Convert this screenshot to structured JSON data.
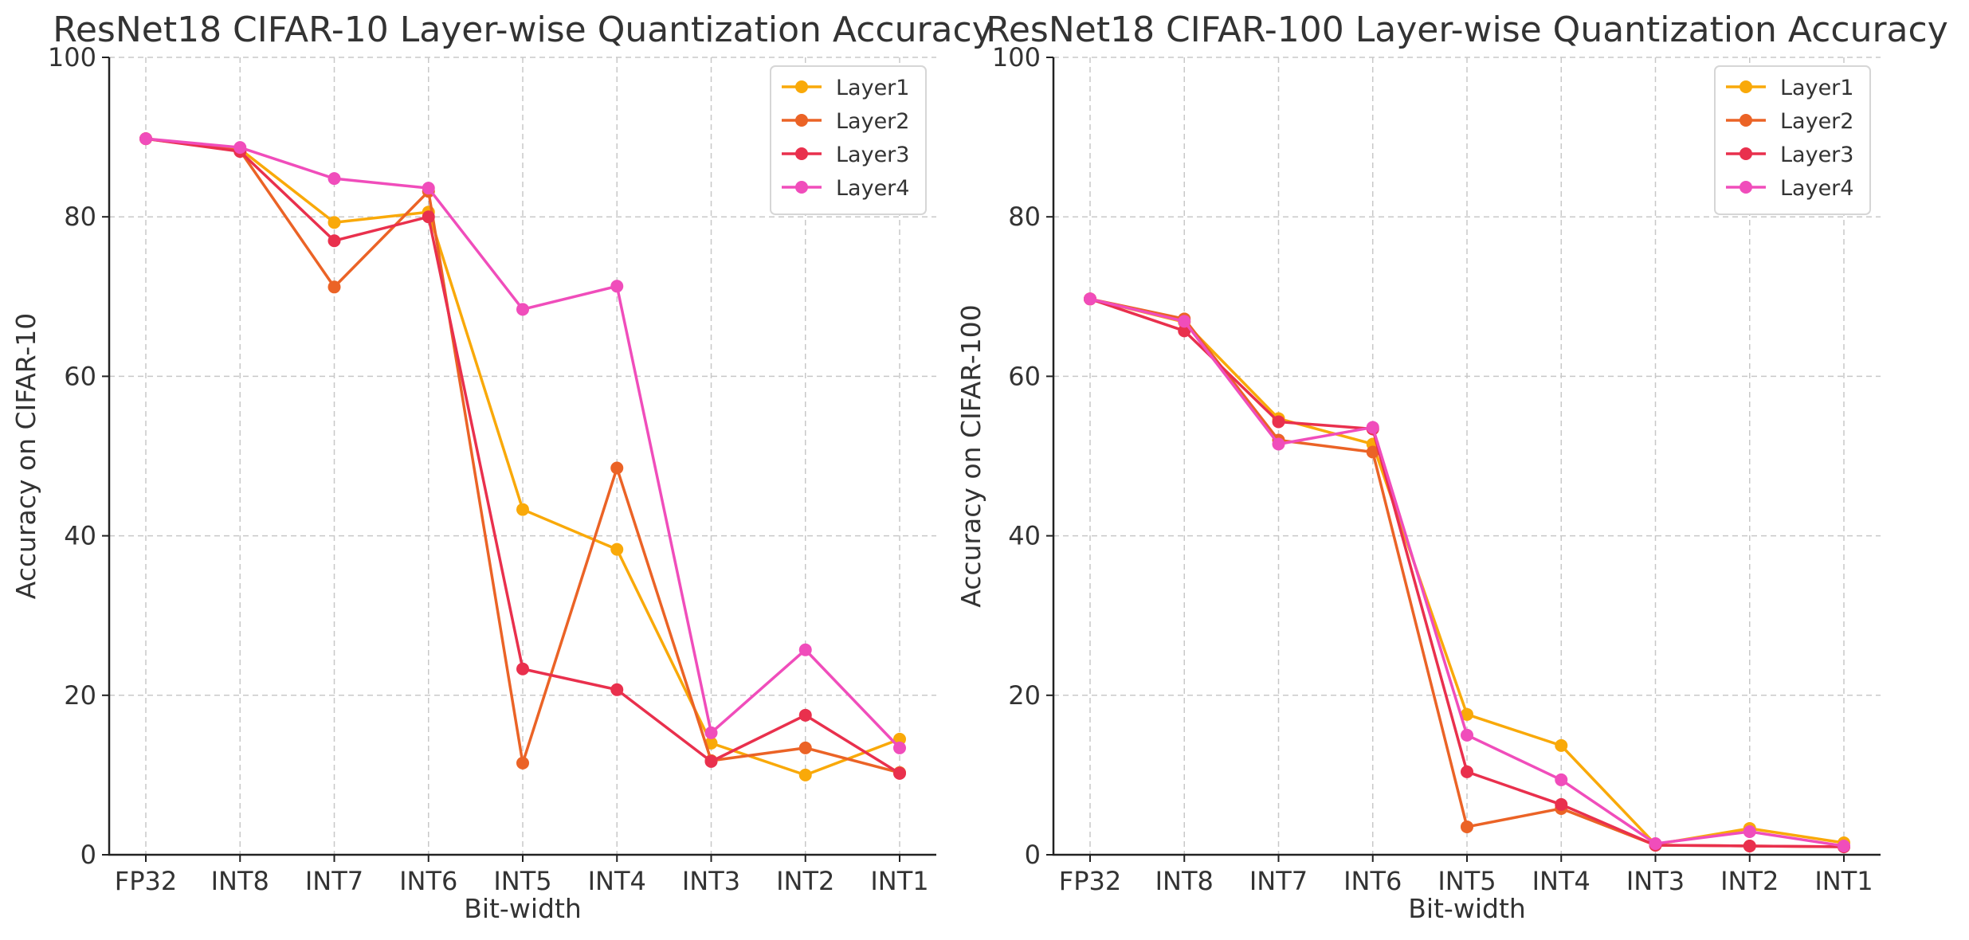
{
  "chart_data": [
    {
      "type": "line",
      "title": "ResNet18 CIFAR-10 Layer-wise Quantization Accuracy",
      "xlabel": "Bit-width",
      "ylabel": "Accuracy on CIFAR-10",
      "categories": [
        "FP32",
        "INT8",
        "INT7",
        "INT6",
        "INT5",
        "INT4",
        "INT3",
        "INT2",
        "INT1"
      ],
      "ylim": [
        0,
        100
      ],
      "yticks": [
        "0",
        "20",
        "40",
        "60",
        "80",
        "100"
      ],
      "grid": true,
      "legend_position": "top-right",
      "series": [
        {
          "name": "Layer1",
          "color": "#F9A909",
          "values": [
            89.8,
            88.5,
            79.3,
            80.6,
            43.3,
            38.3,
            14.0,
            10.0,
            14.5
          ]
        },
        {
          "name": "Layer2",
          "color": "#EB6326",
          "values": [
            89.8,
            88.3,
            71.2,
            83.2,
            11.5,
            48.5,
            11.8,
            13.4,
            10.3
          ]
        },
        {
          "name": "Layer3",
          "color": "#E9304D",
          "values": [
            89.8,
            88.2,
            77.0,
            80.0,
            23.3,
            20.7,
            11.7,
            17.5,
            10.2
          ]
        },
        {
          "name": "Layer4",
          "color": "#F04DBB",
          "values": [
            89.8,
            88.7,
            84.8,
            83.6,
            68.4,
            71.3,
            15.3,
            25.7,
            13.4
          ]
        }
      ]
    },
    {
      "type": "line",
      "title": "ResNet18 CIFAR-100 Layer-wise Quantization Accuracy",
      "xlabel": "Bit-width",
      "ylabel": "Accuracy on CIFAR-100",
      "categories": [
        "FP32",
        "INT8",
        "INT7",
        "INT6",
        "INT5",
        "INT4",
        "INT3",
        "INT2",
        "INT1"
      ],
      "ylim": [
        0,
        100
      ],
      "yticks": [
        "0",
        "20",
        "40",
        "60",
        "80",
        "100"
      ],
      "grid": true,
      "legend_position": "top-right",
      "series": [
        {
          "name": "Layer1",
          "color": "#F9A909",
          "values": [
            69.7,
            66.8,
            54.7,
            51.5,
            17.6,
            13.7,
            1.3,
            3.3,
            1.5
          ]
        },
        {
          "name": "Layer2",
          "color": "#EB6326",
          "values": [
            69.7,
            67.2,
            52.0,
            50.5,
            3.5,
            5.8,
            1.2,
            1.1,
            1.0
          ]
        },
        {
          "name": "Layer3",
          "color": "#E9304D",
          "values": [
            69.7,
            65.7,
            54.3,
            53.4,
            10.4,
            6.3,
            1.2,
            1.1,
            1.0
          ]
        },
        {
          "name": "Layer4",
          "color": "#F04DBB",
          "values": [
            69.7,
            66.9,
            51.5,
            53.6,
            15.0,
            9.4,
            1.4,
            2.9,
            1.1
          ]
        }
      ]
    }
  ]
}
